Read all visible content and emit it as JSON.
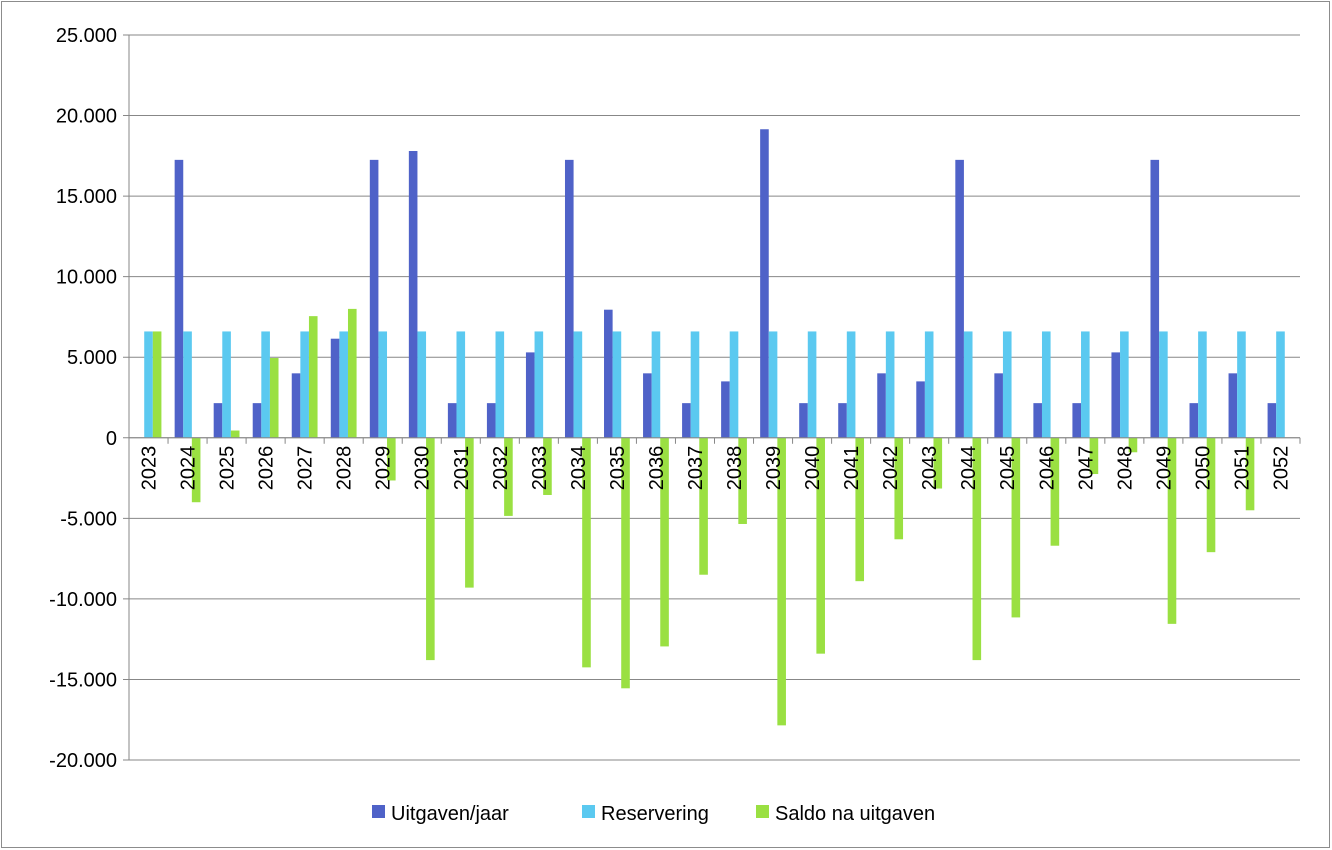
{
  "chart_data": {
    "type": "bar",
    "title": "",
    "xlabel": "",
    "ylabel": "",
    "ylim": [
      -20000,
      25000
    ],
    "ytick_step": 5000,
    "yticks": [
      "25.000",
      "20.000",
      "15.000",
      "10.000",
      "5.000",
      "0",
      "-5.000",
      "-10.000",
      "-15.000",
      "-20.000"
    ],
    "grid": true,
    "legend_position": "bottom",
    "categories": [
      "2023",
      "2024",
      "2025",
      "2026",
      "2027",
      "2028",
      "2029",
      "2030",
      "2031",
      "2032",
      "2033",
      "2034",
      "2035",
      "2036",
      "2037",
      "2038",
      "2039",
      "2040",
      "2041",
      "2042",
      "2043",
      "2044",
      "2045",
      "2046",
      "2047",
      "2048",
      "2049",
      "2050",
      "2051",
      "2052"
    ],
    "series": [
      {
        "name": "Uitgaven/jaar",
        "color": "#4F62C8",
        "values": [
          0,
          17250,
          2150,
          2150,
          4000,
          6150,
          17250,
          17800,
          2150,
          2150,
          5300,
          17250,
          7950,
          4000,
          2150,
          3500,
          19150,
          2150,
          2150,
          4000,
          3500,
          17250,
          4000,
          2150,
          2150,
          5300,
          17250,
          2150,
          4000,
          2150
        ]
      },
      {
        "name": "Reservering",
        "color": "#5BC9F0",
        "values": [
          6600,
          6600,
          6600,
          6600,
          6600,
          6600,
          6600,
          6600,
          6600,
          6600,
          6600,
          6600,
          6600,
          6600,
          6600,
          6600,
          6600,
          6600,
          6600,
          6600,
          6600,
          6600,
          6600,
          6600,
          6600,
          6600,
          6600,
          6600,
          6600,
          6600
        ]
      },
      {
        "name": "Saldo na uitgaven",
        "color": "#9AE042",
        "values": [
          6600,
          -4000,
          450,
          4950,
          7550,
          8000,
          -2650,
          -13800,
          -9300,
          -4850,
          -3550,
          -14250,
          -15550,
          -12950,
          -8500,
          -5350,
          -17850,
          -13400,
          -8900,
          -6300,
          -3150,
          -13800,
          -11150,
          -6700,
          -2250,
          -900,
          -11550,
          -7100,
          -4500,
          0
        ]
      }
    ]
  }
}
